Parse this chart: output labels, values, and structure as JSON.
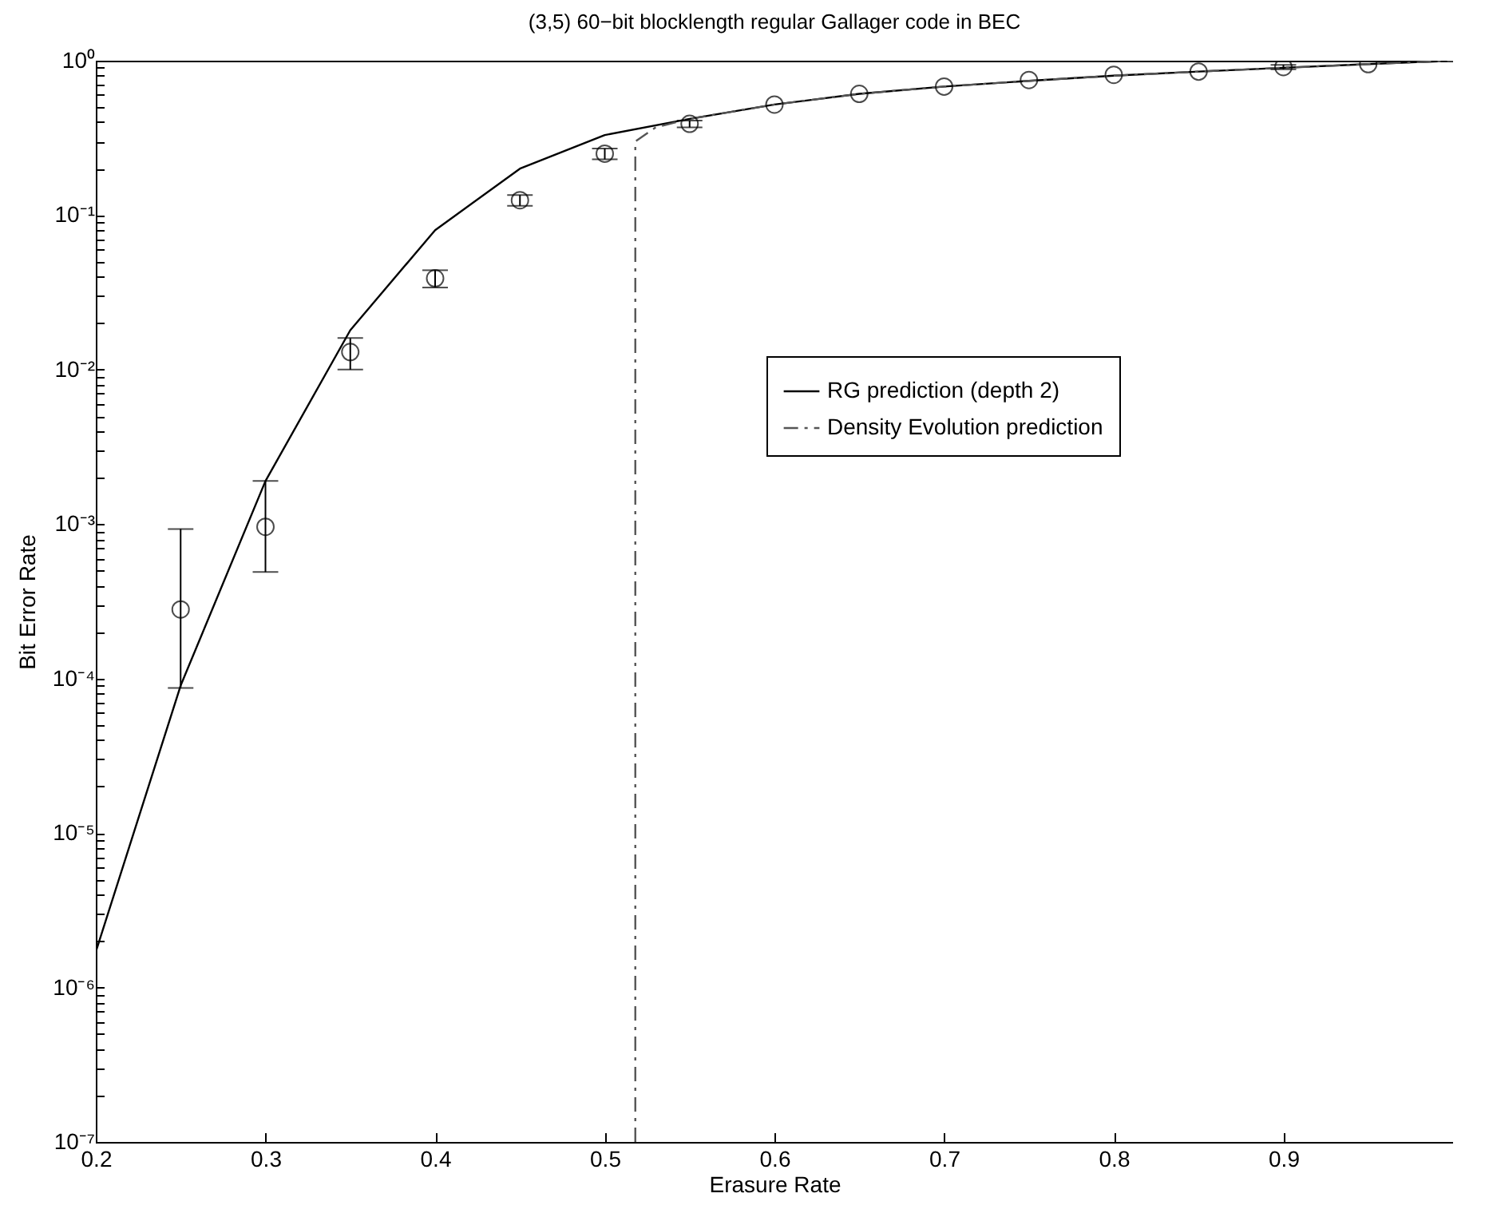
{
  "chart_data": {
    "type": "line",
    "title": "(3,5) 60−bit blocklength regular Gallager code in BEC",
    "xlabel": "Erasure Rate",
    "ylabel": "Bit Error Rate",
    "log": "y",
    "grid": false,
    "legend": "right",
    "xlim": [
      0.2,
      1
    ],
    "xticks": [
      0.2,
      0.3,
      0.4,
      0.5,
      0.6,
      0.7,
      0.8,
      0.9
    ],
    "ylim": [
      1e-07,
      1
    ],
    "yticks": [
      {
        "value": 1e-07,
        "label": "10⁻⁷"
      },
      {
        "value": 1e-06,
        "label": "10⁻⁶"
      },
      {
        "value": 1e-05,
        "label": "10⁻⁵"
      },
      {
        "value": 0.0001,
        "label": "10⁻⁴"
      },
      {
        "value": 0.001,
        "label": "10⁻³"
      },
      {
        "value": 0.01,
        "label": "10⁻²"
      },
      {
        "value": 0.1,
        "label": "10⁻¹"
      },
      {
        "value": 1,
        "label": "10⁰"
      },
      {
        "value": 2e-07,
        "label": null
      },
      {
        "value": 3e-07,
        "label": null
      },
      {
        "value": 4e-07,
        "label": null
      },
      {
        "value": 5e-07,
        "label": null
      },
      {
        "value": 6e-07,
        "label": null
      },
      {
        "value": 7e-07,
        "label": null
      },
      {
        "value": 8e-07,
        "label": null
      },
      {
        "value": 9e-07,
        "label": null
      },
      {
        "value": 2e-06,
        "label": null
      },
      {
        "value": 3e-06,
        "label": null
      },
      {
        "value": 4e-06,
        "label": null
      },
      {
        "value": 5e-06,
        "label": null
      },
      {
        "value": 6e-06,
        "label": null
      },
      {
        "value": 7e-06,
        "label": null
      },
      {
        "value": 8e-06,
        "label": null
      },
      {
        "value": 9e-06,
        "label": null
      },
      {
        "value": 2e-05,
        "label": null
      },
      {
        "value": 3e-05,
        "label": null
      },
      {
        "value": 4e-05,
        "label": null
      },
      {
        "value": 5e-05,
        "label": null
      },
      {
        "value": 6e-05,
        "label": null
      },
      {
        "value": 7e-05,
        "label": null
      },
      {
        "value": 8e-05,
        "label": null
      },
      {
        "value": 9e-05,
        "label": null
      },
      {
        "value": 0.0002,
        "label": null
      },
      {
        "value": 0.0003,
        "label": null
      },
      {
        "value": 0.0004,
        "label": null
      },
      {
        "value": 0.0005,
        "label": null
      },
      {
        "value": 0.0006,
        "label": null
      },
      {
        "value": 0.0007,
        "label": null
      },
      {
        "value": 0.0008,
        "label": null
      },
      {
        "value": 0.0009,
        "label": null
      },
      {
        "value": 0.002,
        "label": null
      },
      {
        "value": 0.003,
        "label": null
      },
      {
        "value": 0.004,
        "label": null
      },
      {
        "value": 0.005,
        "label": null
      },
      {
        "value": 0.006,
        "label": null
      },
      {
        "value": 0.007,
        "label": null
      },
      {
        "value": 0.008,
        "label": null
      },
      {
        "value": 0.009,
        "label": null
      },
      {
        "value": 0.02,
        "label": null
      },
      {
        "value": 0.03,
        "label": null
      },
      {
        "value": 0.04,
        "label": null
      },
      {
        "value": 0.05,
        "label": null
      },
      {
        "value": 0.06,
        "label": null
      },
      {
        "value": 0.07,
        "label": null
      },
      {
        "value": 0.08,
        "label": null
      },
      {
        "value": 0.09,
        "label": null
      },
      {
        "value": 0.2,
        "label": null
      },
      {
        "value": 0.3,
        "label": null
      },
      {
        "value": 0.4,
        "label": null
      },
      {
        "value": 0.5,
        "label": null
      },
      {
        "value": 0.6,
        "label": null
      },
      {
        "value": 0.7,
        "label": null
      },
      {
        "value": 0.8,
        "label": null
      },
      {
        "value": 0.9,
        "label": null
      }
    ],
    "series": [
      {
        "name": "RG prediction (depth 2)",
        "color": "#000000",
        "line_style": "solid",
        "x": [
          0.2,
          0.25,
          0.3,
          0.35,
          0.4,
          0.45,
          0.5,
          0.55,
          0.6,
          0.65,
          0.7,
          0.75,
          0.8,
          0.85,
          0.9,
          0.95,
          1.0
        ],
        "values": [
          1.7e-06,
          9e-05,
          0.0019,
          0.018,
          0.08,
          0.2,
          0.33,
          0.42,
          0.52,
          0.61,
          0.68,
          0.74,
          0.8,
          0.85,
          0.9,
          0.95,
          1.0
        ]
      },
      {
        "name": "Density Evolution prediction",
        "color": "#555555",
        "line_style": "dashed",
        "x": [
          0.518,
          0.518,
          0.53,
          0.55,
          0.6,
          0.65,
          0.7,
          0.75,
          0.8,
          0.85,
          0.9,
          0.95,
          1.0
        ],
        "values": [
          1e-07,
          0.3,
          0.37,
          0.42,
          0.52,
          0.61,
          0.68,
          0.74,
          0.8,
          0.85,
          0.9,
          0.95,
          1.0
        ]
      },
      {
        "type": "scatter",
        "marker": "circle",
        "color": "#000000",
        "x": [
          0.25,
          0.3,
          0.35,
          0.4,
          0.45,
          0.5,
          0.55,
          0.6,
          0.65,
          0.7,
          0.75,
          0.8,
          0.85,
          0.9,
          0.95
        ],
        "values": [
          0.00028,
          0.00096,
          0.013,
          0.039,
          0.125,
          0.25,
          0.39,
          0.52,
          0.61,
          0.68,
          0.75,
          0.81,
          0.85,
          0.91,
          0.95
        ],
        "errors": [
          [
            8.7e-05,
            0.00093
          ],
          [
            0.00049,
            0.0019
          ],
          [
            0.01,
            0.016
          ],
          [
            0.034,
            0.044
          ],
          [
            0.115,
            0.135
          ],
          [
            0.23,
            0.27
          ],
          [
            0.37,
            0.41
          ],
          null,
          null,
          null,
          null,
          null,
          null,
          [
            0.88,
            0.94
          ],
          null
        ]
      }
    ]
  }
}
